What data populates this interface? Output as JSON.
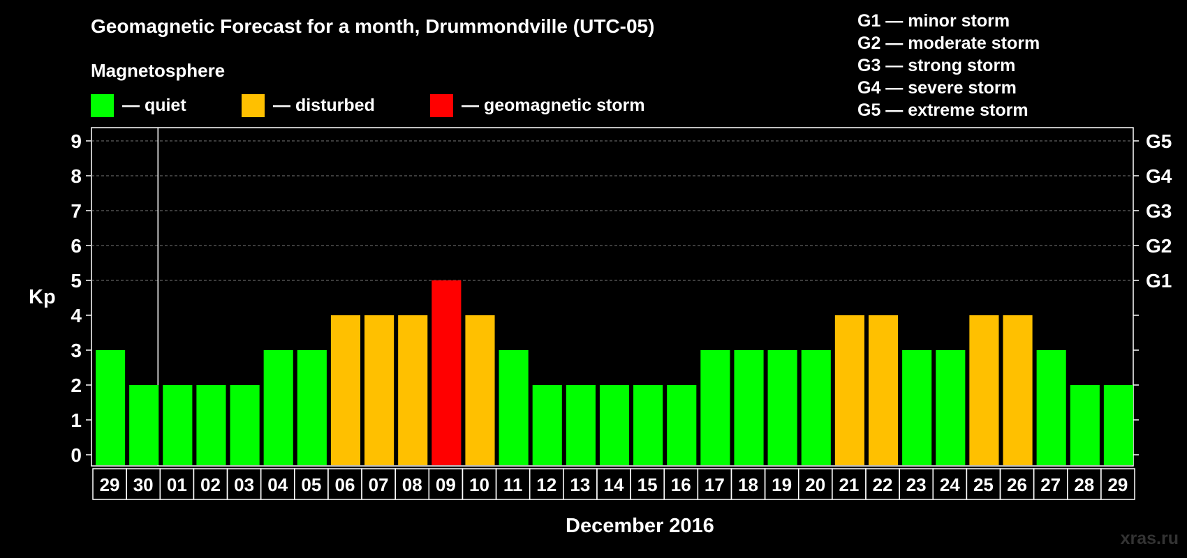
{
  "title": "Geomagnetic Forecast for a month, Drummondville (UTC-05)",
  "magnetosphere_label": "Magnetosphere",
  "legend": [
    {
      "text": "— quiet",
      "color": "#00ff00"
    },
    {
      "text": "— disturbed",
      "color": "#ffc000"
    },
    {
      "text": "— geomagnetic storm",
      "color": "#ff0000"
    }
  ],
  "g_scale": [
    "G1 — minor storm",
    "G2 — moderate storm",
    "G3 — strong storm",
    "G4 — severe storm",
    "G5 — extreme storm"
  ],
  "watermark": "xras.ru",
  "chart_data": {
    "type": "bar",
    "title": "Geomagnetic Forecast for a month, Drummondville (UTC-05)",
    "xlabel": "December 2016",
    "ylabel": "Kp",
    "ylim": [
      0,
      9
    ],
    "yticks": [
      "0",
      "1",
      "2",
      "3",
      "4",
      "5",
      "6",
      "7",
      "8",
      "9"
    ],
    "right_axis_labels": [
      {
        "value": 5,
        "label": "G1"
      },
      {
        "value": 6,
        "label": "G2"
      },
      {
        "value": 7,
        "label": "G3"
      },
      {
        "value": 8,
        "label": "G4"
      },
      {
        "value": 9,
        "label": "G5"
      }
    ],
    "grid": "dashed lines at Kp 5-9",
    "categories": [
      "29",
      "30",
      "01",
      "02",
      "03",
      "04",
      "05",
      "06",
      "07",
      "08",
      "09",
      "10",
      "11",
      "12",
      "13",
      "14",
      "15",
      "16",
      "17",
      "18",
      "19",
      "20",
      "21",
      "22",
      "23",
      "24",
      "25",
      "26",
      "27",
      "28",
      "29"
    ],
    "values": [
      3,
      2,
      2,
      2,
      2,
      3,
      3,
      4,
      4,
      4,
      5,
      4,
      3,
      2,
      2,
      2,
      2,
      2,
      3,
      3,
      3,
      3,
      4,
      4,
      3,
      3,
      4,
      4,
      3,
      2,
      2
    ],
    "color_levels": {
      "quiet": "#00ff00",
      "disturbed": "#ffc000",
      "storm": "#ff0000"
    }
  }
}
